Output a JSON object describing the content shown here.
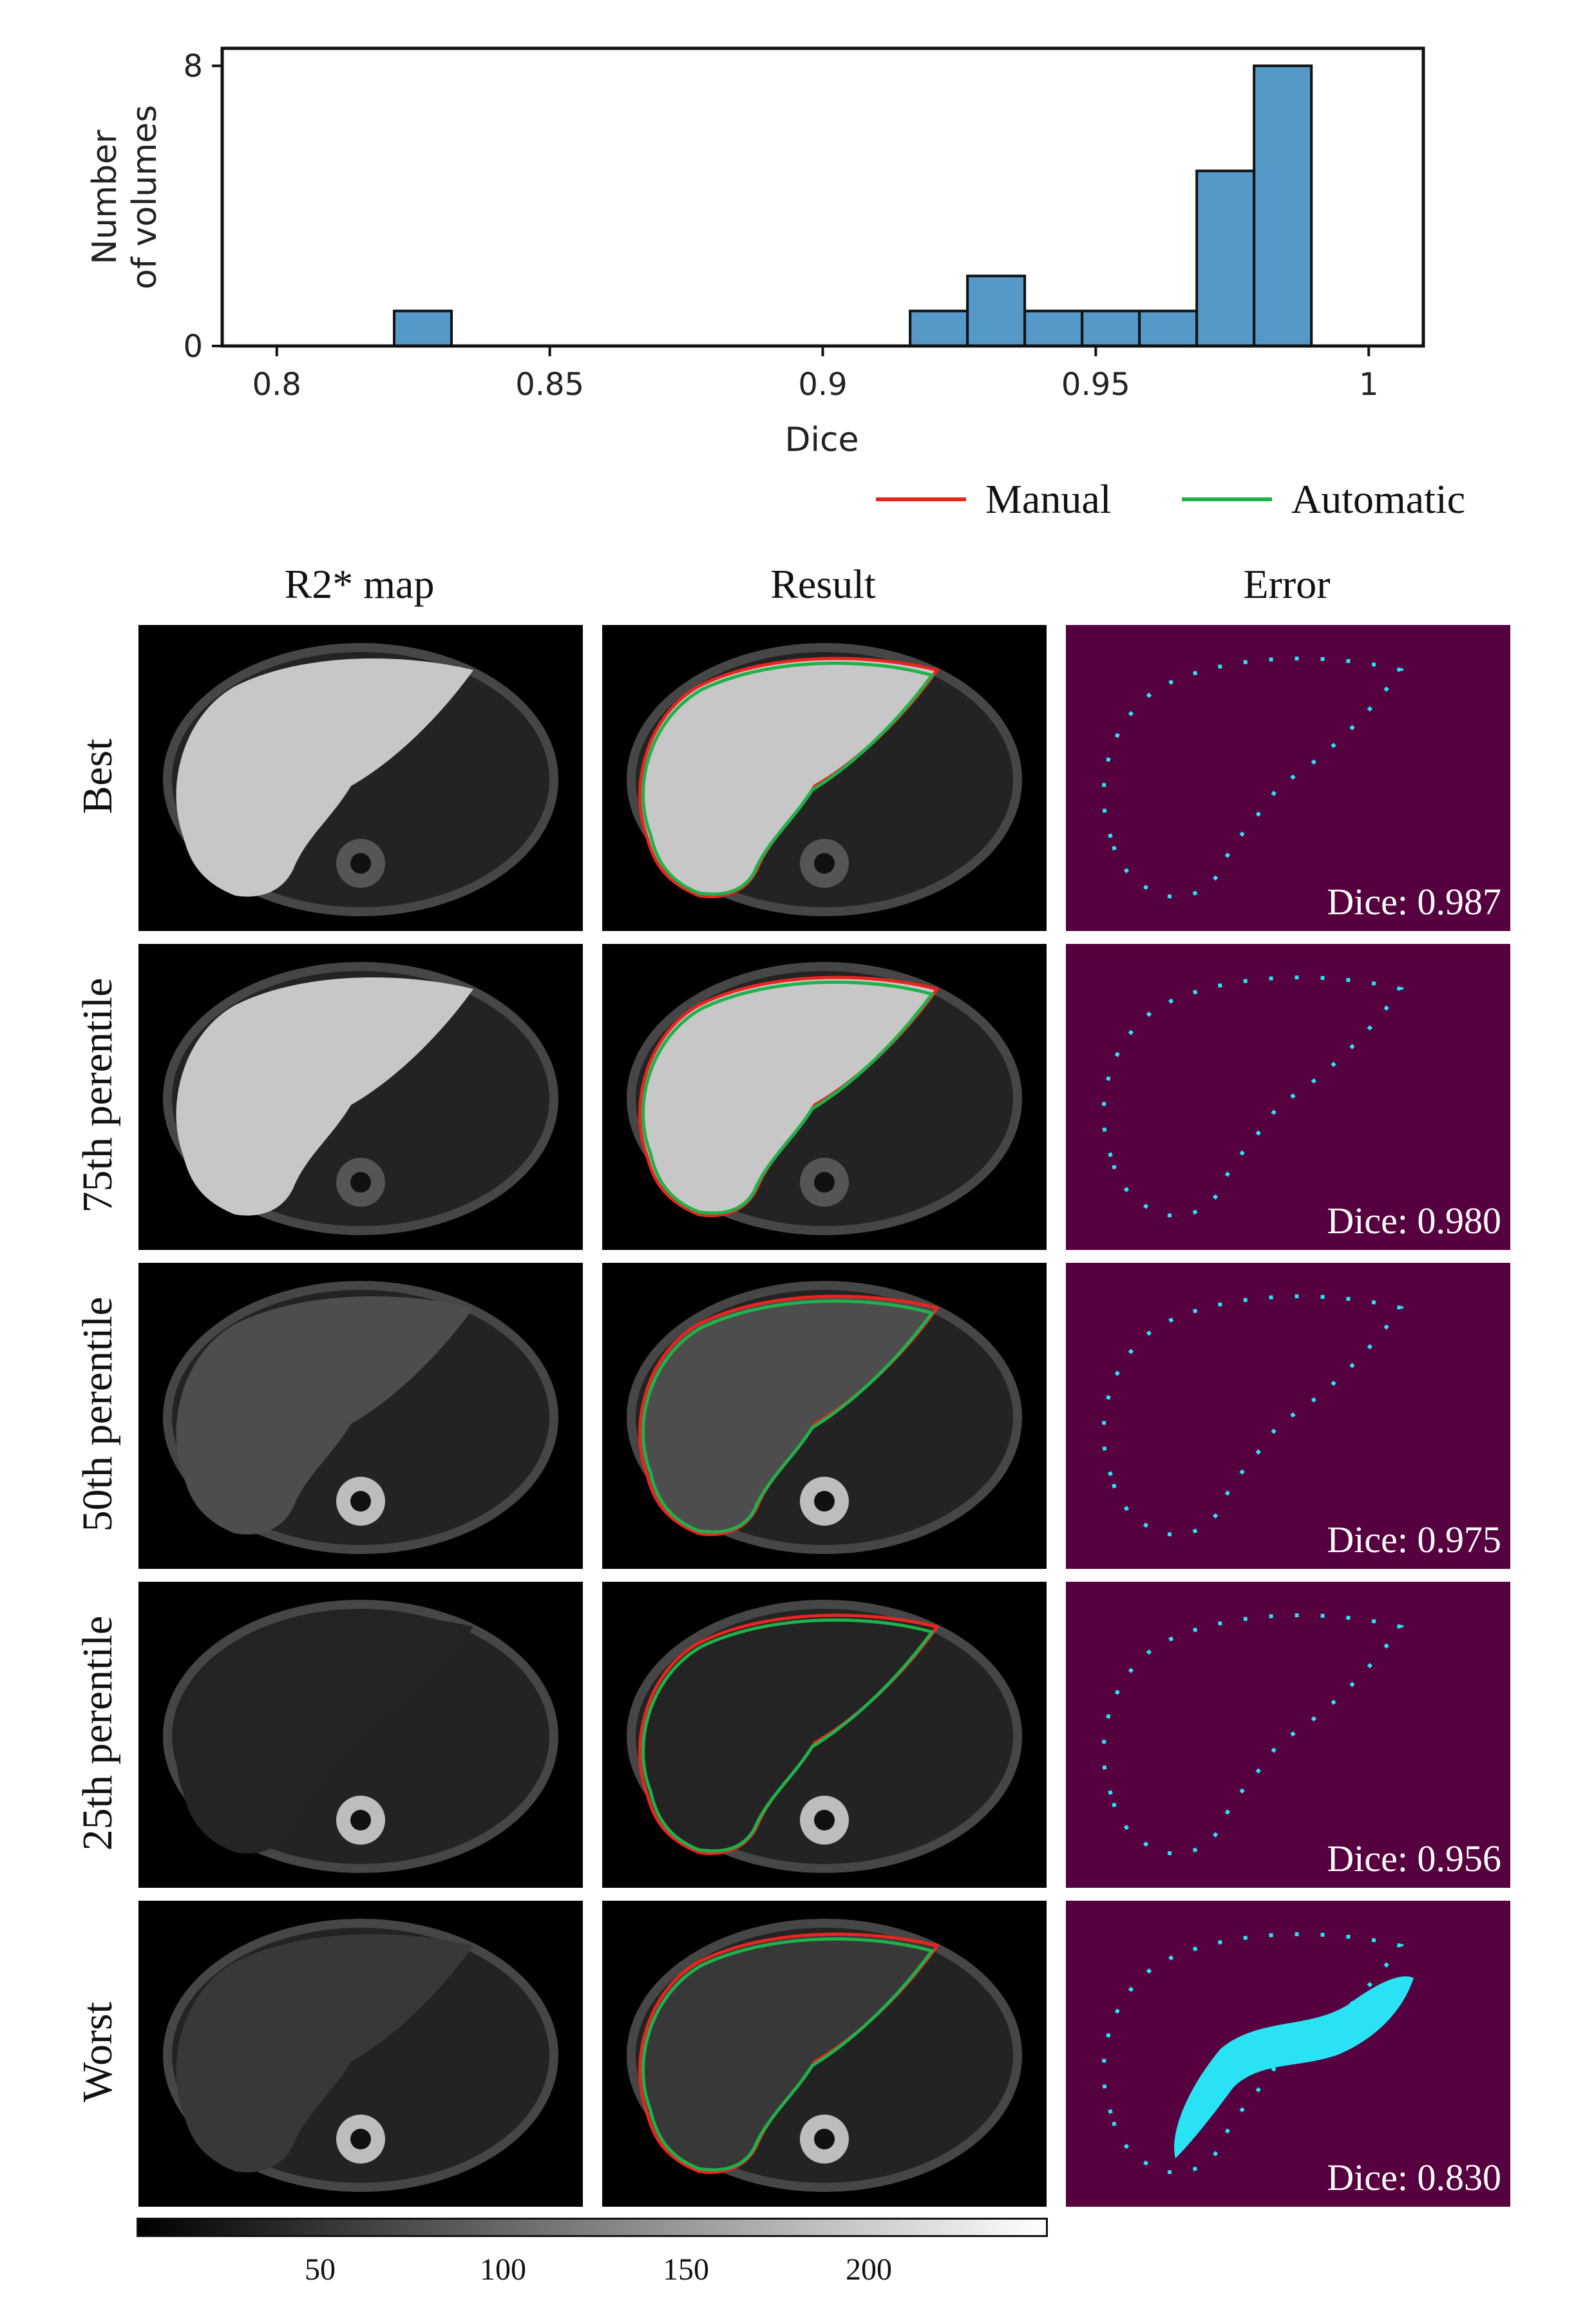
{
  "chart_data": {
    "type": "bar",
    "xlabel": "Dice",
    "ylabel": "Number of volumes",
    "ylabel_lines": [
      "Number",
      "of volumes"
    ],
    "xlim": [
      0.79,
      1.01
    ],
    "ylim": [
      0,
      8.5
    ],
    "xticks": [
      0.8,
      0.85,
      0.9,
      0.95,
      1
    ],
    "xtick_labels": [
      "0.8",
      "0.85",
      "0.9",
      "0.95",
      "1"
    ],
    "yticks": [
      0,
      8
    ],
    "ytick_labels": [
      "0",
      "8"
    ],
    "bin_width": 0.0105,
    "bins": [
      {
        "x0": 0.8215,
        "count": 1
      },
      {
        "x0": 0.916,
        "count": 1
      },
      {
        "x0": 0.9265,
        "count": 2
      },
      {
        "x0": 0.937,
        "count": 1
      },
      {
        "x0": 0.9475,
        "count": 1
      },
      {
        "x0": 0.958,
        "count": 1
      },
      {
        "x0": 0.9685,
        "count": 5
      },
      {
        "x0": 0.979,
        "count": 8
      }
    ],
    "bar_color": "#5499c7",
    "grid": false
  },
  "legend": {
    "items": [
      {
        "label": "Manual",
        "color": "#e8251f"
      },
      {
        "label": "Automatic",
        "color": "#1fb14a"
      }
    ]
  },
  "columns": {
    "r2": "R2* map",
    "result": "Result",
    "error": "Error"
  },
  "rows": [
    {
      "label": "Best",
      "dice": "Dice: 0.987"
    },
    {
      "label": "75th perentile",
      "dice": "Dice: 0.980"
    },
    {
      "label": "50th perentile",
      "dice": "Dice: 0.975"
    },
    {
      "label": "25th perentile",
      "dice": "Dice: 0.956"
    },
    {
      "label": "Worst",
      "dice": "Dice: 0.830"
    }
  ],
  "colorbar": {
    "tick_labels": [
      "50",
      "100",
      "150",
      "200"
    ],
    "ticks": [
      50,
      100,
      150,
      200
    ],
    "range": [
      0,
      255
    ]
  },
  "colors": {
    "error_background": "#560040",
    "error_marks": "#29e3f5"
  }
}
